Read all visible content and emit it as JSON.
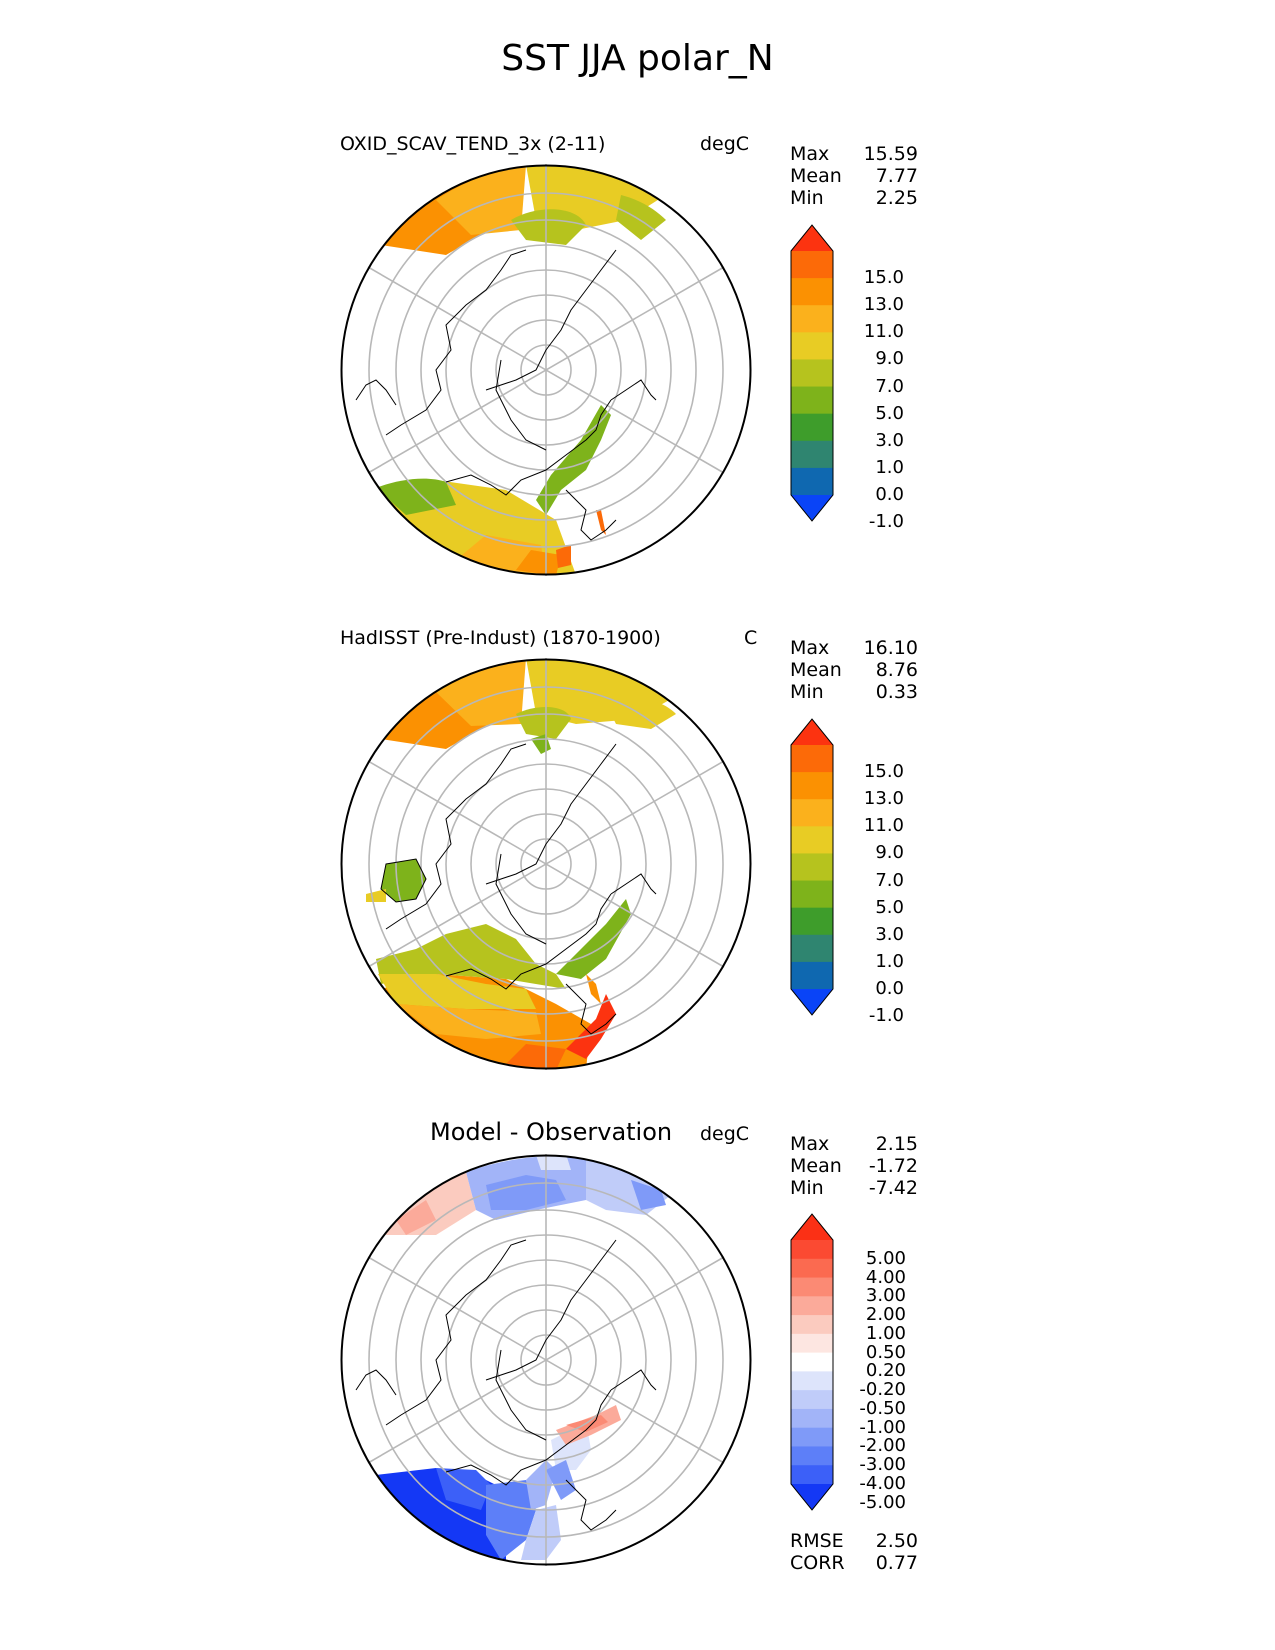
{
  "figure": {
    "title": "SST JJA polar_N"
  },
  "panels": [
    {
      "id": "test",
      "title": "OXID_SCAV_TEND_3x (2-11)",
      "units": "degC",
      "stats": [
        {
          "label": "Max",
          "value": "15.59"
        },
        {
          "label": "Mean",
          "value": "7.77"
        },
        {
          "label": "Min",
          "value": "2.25"
        }
      ],
      "colorbar": {
        "levels": [
          "15.0",
          "13.0",
          "11.0",
          "9.0",
          "7.0",
          "5.0",
          "3.0",
          "1.0",
          "0.0",
          "-1.0"
        ],
        "colors": [
          "#fc3310",
          "#fc6a08",
          "#fb9102",
          "#fbb11c",
          "#e8cc24",
          "#b6c31e",
          "#7eb31b",
          "#3e9d2b",
          "#2f8570",
          "#0f68b0",
          "#0a44f7"
        ],
        "extend": "both"
      }
    },
    {
      "id": "reference",
      "title": "HadISST (Pre-Indust) (1870-1900)",
      "units": "C",
      "stats": [
        {
          "label": "Max",
          "value": "16.10"
        },
        {
          "label": "Mean",
          "value": "8.76"
        },
        {
          "label": "Min",
          "value": "0.33"
        }
      ],
      "colorbar": {
        "levels": [
          "15.0",
          "13.0",
          "11.0",
          "9.0",
          "7.0",
          "5.0",
          "3.0",
          "1.0",
          "0.0",
          "-1.0"
        ],
        "colors": [
          "#fc3310",
          "#fc6a08",
          "#fb9102",
          "#fbb11c",
          "#e8cc24",
          "#b6c31e",
          "#7eb31b",
          "#3e9d2b",
          "#2f8570",
          "#0f68b0",
          "#0a44f7"
        ],
        "extend": "both"
      }
    },
    {
      "id": "difference",
      "title": "Model - Observation",
      "units": "degC",
      "stats": [
        {
          "label": "Max",
          "value": "2.15"
        },
        {
          "label": "Mean",
          "value": "-1.72"
        },
        {
          "label": "Min",
          "value": "-7.42"
        }
      ],
      "colorbar": {
        "levels": [
          "5.00",
          "4.00",
          "3.00",
          "2.00",
          "1.00",
          "0.50",
          "0.20",
          "-0.20",
          "-0.50",
          "-1.00",
          "-2.00",
          "-3.00",
          "-4.00",
          "-5.00"
        ],
        "colors": [
          "#fb3015",
          "#fb4a32",
          "#fb6a50",
          "#fb8a74",
          "#fbaa9a",
          "#fbcbbf",
          "#fde6e1",
          "#ffffff",
          "#dde4fb",
          "#c0ccf9",
          "#a2b4f8",
          "#7f9af8",
          "#5d7ff8",
          "#3c60f8",
          "#1438f5"
        ],
        "extend": "both"
      },
      "metrics": [
        {
          "label": "RMSE",
          "value": "2.50"
        },
        {
          "label": "CORR",
          "value": "0.77"
        }
      ]
    }
  ]
}
